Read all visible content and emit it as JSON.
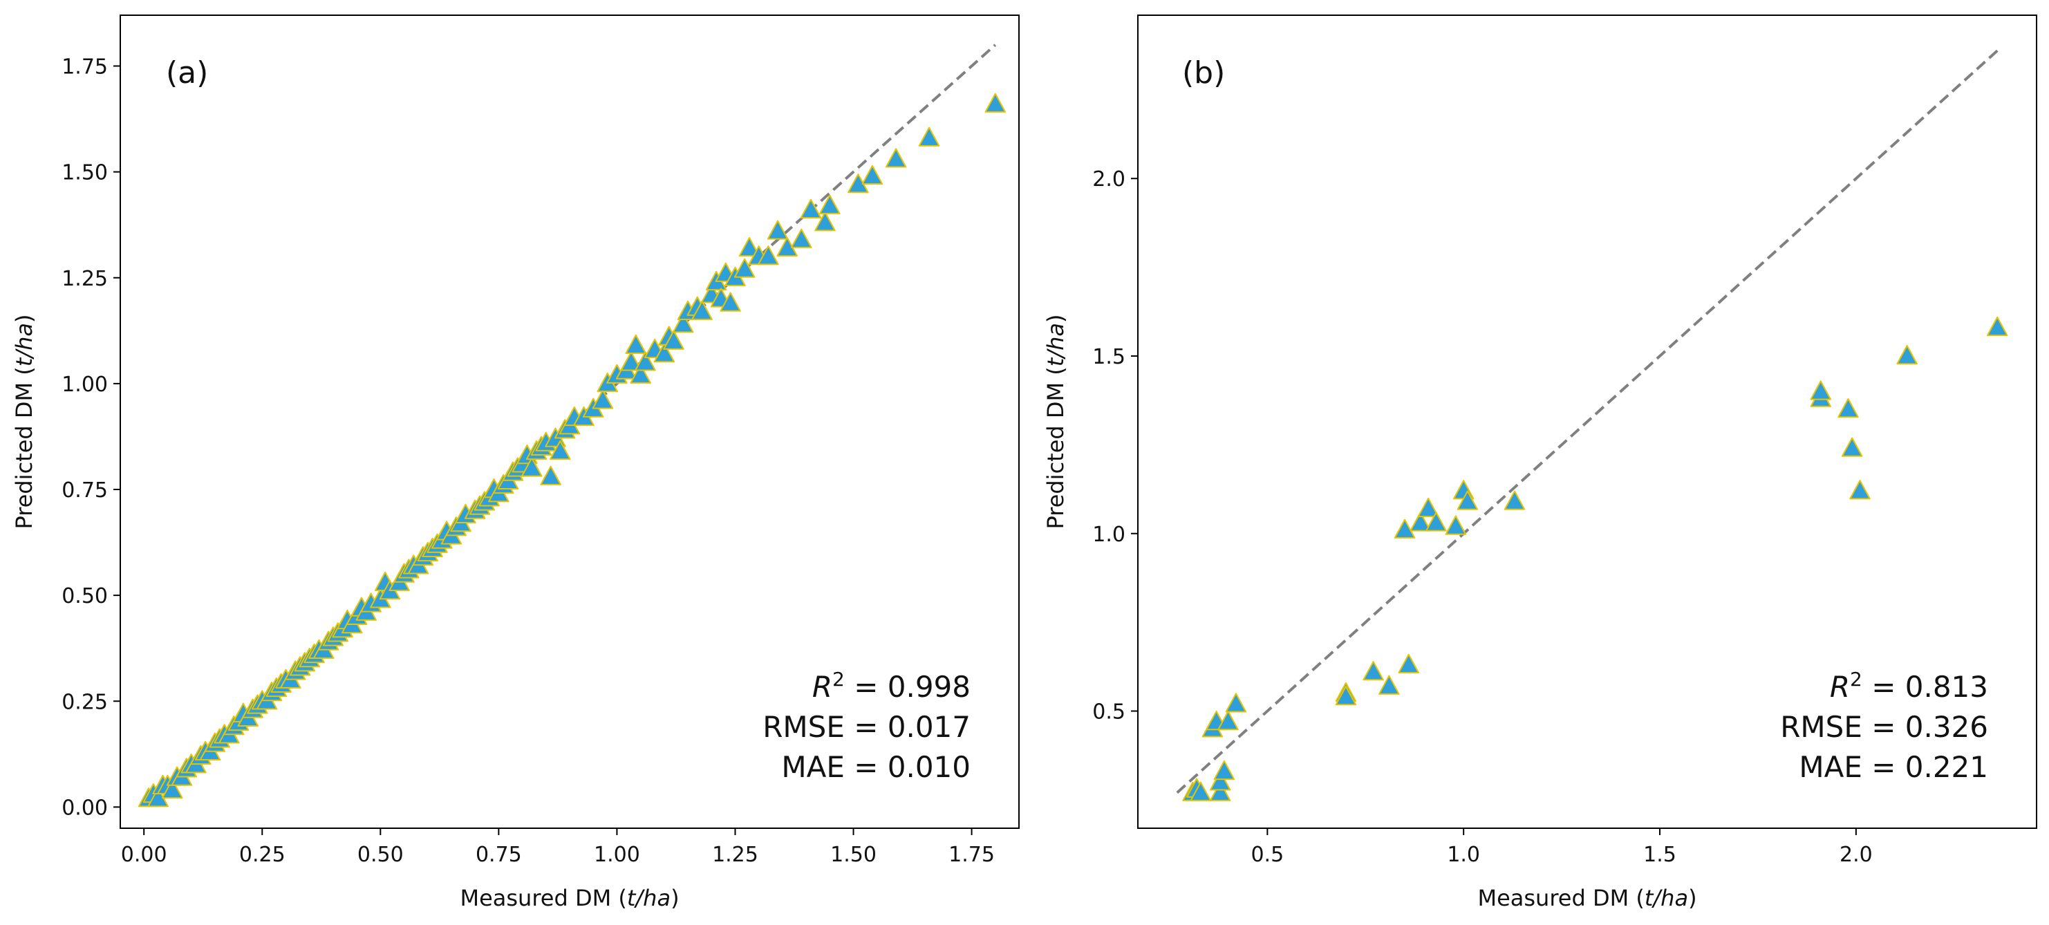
{
  "figure": {
    "marker_fill": "#2e9fd8",
    "marker_edge": "#e8c400",
    "identity_line_color": "#808080"
  },
  "chart_data": [
    {
      "type": "scatter",
      "panel_label": "(a)",
      "xlabel_prefix": "Measured DM (",
      "xlabel_unit": "t/ha",
      "xlabel_suffix": ")",
      "ylabel_prefix": "Predicted DM (",
      "ylabel_unit": "t/ha",
      "ylabel_suffix": ")",
      "xlim": [
        -0.05,
        1.85
      ],
      "ylim": [
        -0.05,
        1.87
      ],
      "xticks": [
        0.0,
        0.25,
        0.5,
        0.75,
        1.0,
        1.25,
        1.5,
        1.75
      ],
      "xtick_labels": [
        "0.00",
        "0.25",
        "0.50",
        "0.75",
        "1.00",
        "1.25",
        "1.50",
        "1.75"
      ],
      "yticks": [
        0.0,
        0.25,
        0.5,
        0.75,
        1.0,
        1.25,
        1.5,
        1.75
      ],
      "ytick_labels": [
        "0.00",
        "0.25",
        "0.50",
        "0.75",
        "1.00",
        "1.25",
        "1.50",
        "1.75"
      ],
      "identity_line": [
        0.02,
        1.8
      ],
      "stats": {
        "r2_label": "R",
        "r2_sup": "2",
        "r2_value": " = 0.998",
        "rmse": "RMSE = 0.017",
        "mae": "MAE = 0.010"
      },
      "points": [
        [
          0.01,
          0.02
        ],
        [
          0.02,
          0.03
        ],
        [
          0.03,
          0.02
        ],
        [
          0.04,
          0.05
        ],
        [
          0.05,
          0.05
        ],
        [
          0.06,
          0.04
        ],
        [
          0.07,
          0.07
        ],
        [
          0.08,
          0.07
        ],
        [
          0.09,
          0.09
        ],
        [
          0.1,
          0.1
        ],
        [
          0.11,
          0.1
        ],
        [
          0.12,
          0.12
        ],
        [
          0.13,
          0.13
        ],
        [
          0.14,
          0.13
        ],
        [
          0.15,
          0.15
        ],
        [
          0.16,
          0.16
        ],
        [
          0.17,
          0.17
        ],
        [
          0.18,
          0.17
        ],
        [
          0.19,
          0.19
        ],
        [
          0.2,
          0.2
        ],
        [
          0.21,
          0.22
        ],
        [
          0.22,
          0.21
        ],
        [
          0.23,
          0.23
        ],
        [
          0.24,
          0.24
        ],
        [
          0.25,
          0.25
        ],
        [
          0.26,
          0.25
        ],
        [
          0.27,
          0.27
        ],
        [
          0.28,
          0.28
        ],
        [
          0.29,
          0.29
        ],
        [
          0.3,
          0.3
        ],
        [
          0.31,
          0.3
        ],
        [
          0.32,
          0.32
        ],
        [
          0.33,
          0.33
        ],
        [
          0.34,
          0.34
        ],
        [
          0.35,
          0.35
        ],
        [
          0.36,
          0.36
        ],
        [
          0.37,
          0.37
        ],
        [
          0.38,
          0.37
        ],
        [
          0.39,
          0.39
        ],
        [
          0.4,
          0.4
        ],
        [
          0.41,
          0.41
        ],
        [
          0.42,
          0.42
        ],
        [
          0.43,
          0.44
        ],
        [
          0.44,
          0.43
        ],
        [
          0.45,
          0.45
        ],
        [
          0.46,
          0.47
        ],
        [
          0.47,
          0.46
        ],
        [
          0.48,
          0.48
        ],
        [
          0.5,
          0.49
        ],
        [
          0.51,
          0.53
        ],
        [
          0.52,
          0.51
        ],
        [
          0.54,
          0.53
        ],
        [
          0.55,
          0.55
        ],
        [
          0.56,
          0.56
        ],
        [
          0.57,
          0.57
        ],
        [
          0.58,
          0.57
        ],
        [
          0.59,
          0.59
        ],
        [
          0.6,
          0.6
        ],
        [
          0.61,
          0.61
        ],
        [
          0.62,
          0.62
        ],
        [
          0.63,
          0.63
        ],
        [
          0.64,
          0.65
        ],
        [
          0.65,
          0.64
        ],
        [
          0.66,
          0.66
        ],
        [
          0.67,
          0.67
        ],
        [
          0.68,
          0.69
        ],
        [
          0.7,
          0.7
        ],
        [
          0.71,
          0.71
        ],
        [
          0.72,
          0.72
        ],
        [
          0.73,
          0.73
        ],
        [
          0.74,
          0.75
        ],
        [
          0.75,
          0.74
        ],
        [
          0.76,
          0.76
        ],
        [
          0.77,
          0.77
        ],
        [
          0.78,
          0.79
        ],
        [
          0.79,
          0.8
        ],
        [
          0.8,
          0.81
        ],
        [
          0.81,
          0.83
        ],
        [
          0.82,
          0.8
        ],
        [
          0.83,
          0.84
        ],
        [
          0.84,
          0.85
        ],
        [
          0.85,
          0.86
        ],
        [
          0.86,
          0.78
        ],
        [
          0.87,
          0.87
        ],
        [
          0.88,
          0.84
        ],
        [
          0.89,
          0.89
        ],
        [
          0.9,
          0.9
        ],
        [
          0.91,
          0.92
        ],
        [
          0.93,
          0.92
        ],
        [
          0.95,
          0.94
        ],
        [
          0.97,
          0.96
        ],
        [
          0.98,
          1.0
        ],
        [
          1.0,
          1.02
        ],
        [
          1.02,
          1.03
        ],
        [
          1.03,
          1.05
        ],
        [
          1.04,
          1.09
        ],
        [
          1.05,
          1.02
        ],
        [
          1.06,
          1.05
        ],
        [
          1.08,
          1.08
        ],
        [
          1.1,
          1.07
        ],
        [
          1.11,
          1.11
        ],
        [
          1.12,
          1.1
        ],
        [
          1.14,
          1.14
        ],
        [
          1.15,
          1.17
        ],
        [
          1.17,
          1.18
        ],
        [
          1.18,
          1.17
        ],
        [
          1.2,
          1.21
        ],
        [
          1.21,
          1.24
        ],
        [
          1.22,
          1.2
        ],
        [
          1.23,
          1.26
        ],
        [
          1.24,
          1.19
        ],
        [
          1.25,
          1.25
        ],
        [
          1.27,
          1.27
        ],
        [
          1.28,
          1.32
        ],
        [
          1.3,
          1.3
        ],
        [
          1.32,
          1.3
        ],
        [
          1.34,
          1.36
        ],
        [
          1.36,
          1.32
        ],
        [
          1.39,
          1.34
        ],
        [
          1.41,
          1.41
        ],
        [
          1.44,
          1.38
        ],
        [
          1.45,
          1.42
        ],
        [
          1.51,
          1.47
        ],
        [
          1.54,
          1.49
        ],
        [
          1.59,
          1.53
        ],
        [
          1.66,
          1.58
        ],
        [
          1.8,
          1.66
        ]
      ]
    },
    {
      "type": "scatter",
      "panel_label": "(b)",
      "xlabel_prefix": "Measured DM (",
      "xlabel_unit": "t/ha",
      "xlabel_suffix": ")",
      "ylabel_prefix": "Predicted DM (",
      "ylabel_unit": "t/ha",
      "ylabel_suffix": ")",
      "xlim": [
        0.17,
        2.46
      ],
      "ylim": [
        0.17,
        2.46
      ],
      "xticks": [
        0.5,
        1.0,
        1.5,
        2.0
      ],
      "xtick_labels": [
        "0.5",
        "1.0",
        "1.5",
        "2.0"
      ],
      "yticks": [
        0.5,
        1.0,
        1.5,
        2.0
      ],
      "ytick_labels": [
        "0.5",
        "1.0",
        "1.5",
        "2.0"
      ],
      "identity_line": [
        0.27,
        2.37
      ],
      "stats": {
        "r2_label": "R",
        "r2_sup": "2",
        "r2_value": " = 0.813",
        "rmse": "RMSE = 0.326",
        "mae": "MAE = 0.221"
      },
      "points": [
        [
          0.31,
          0.27
        ],
        [
          0.32,
          0.28
        ],
        [
          0.33,
          0.27
        ],
        [
          0.36,
          0.45
        ],
        [
          0.37,
          0.47
        ],
        [
          0.38,
          0.27
        ],
        [
          0.38,
          0.3
        ],
        [
          0.39,
          0.33
        ],
        [
          0.4,
          0.47
        ],
        [
          0.42,
          0.52
        ],
        [
          0.7,
          0.55
        ],
        [
          0.7,
          0.54
        ],
        [
          0.77,
          0.61
        ],
        [
          0.81,
          0.57
        ],
        [
          0.85,
          1.01
        ],
        [
          0.86,
          0.63
        ],
        [
          0.89,
          1.03
        ],
        [
          0.91,
          1.07
        ],
        [
          0.93,
          1.03
        ],
        [
          0.98,
          1.02
        ],
        [
          1.0,
          1.12
        ],
        [
          1.01,
          1.09
        ],
        [
          1.13,
          1.09
        ],
        [
          1.91,
          1.38
        ],
        [
          1.91,
          1.4
        ],
        [
          1.98,
          1.35
        ],
        [
          1.99,
          1.24
        ],
        [
          2.01,
          1.12
        ],
        [
          2.13,
          1.5
        ],
        [
          2.36,
          1.58
        ]
      ]
    }
  ]
}
